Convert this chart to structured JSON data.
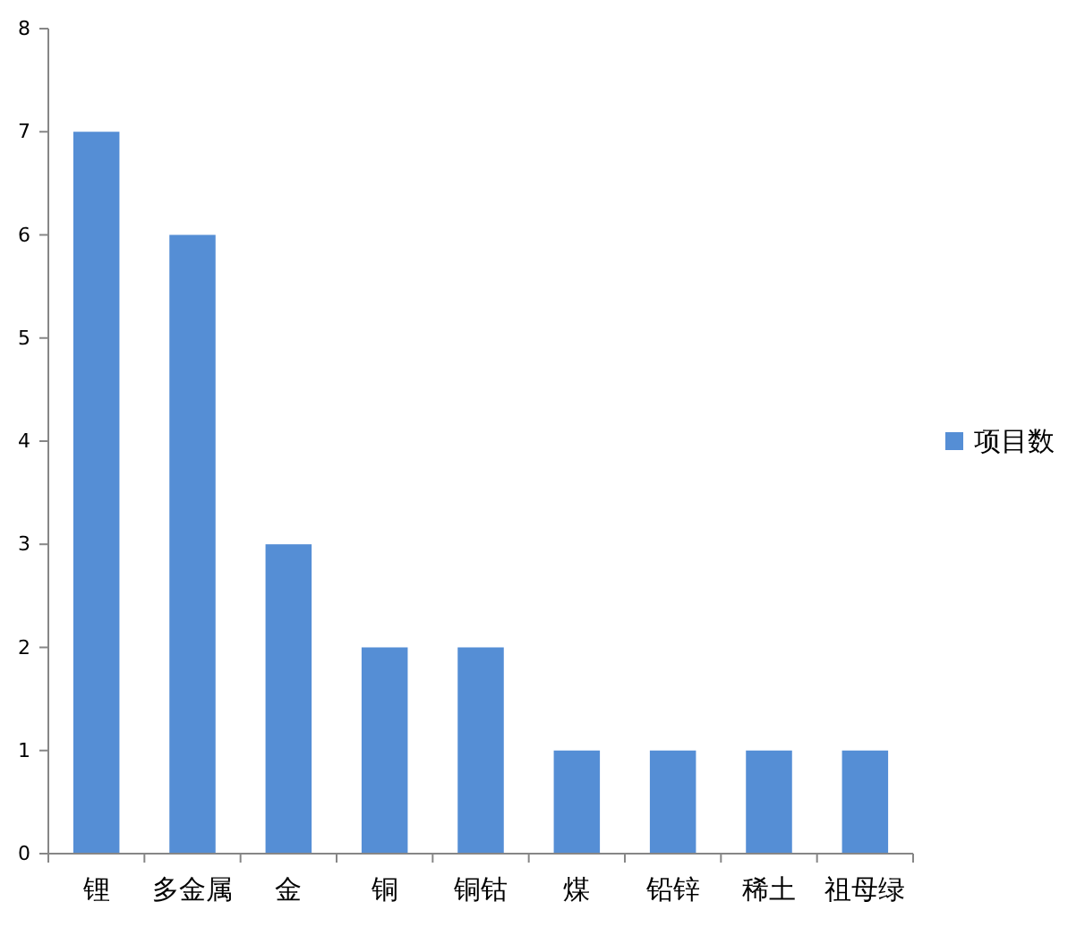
{
  "chart_data": {
    "type": "bar",
    "categories": [
      "锂",
      "多金属",
      "金",
      "铜",
      "铜钴",
      "煤",
      "铅锌",
      "稀土",
      "祖母绿"
    ],
    "series": [
      {
        "name": "项目数",
        "color": "#558ed5",
        "values": [
          7,
          6,
          3,
          2,
          2,
          1,
          1,
          1,
          1
        ]
      }
    ],
    "ylim": [
      0,
      8
    ],
    "yticks": [
      0,
      1,
      2,
      3,
      4,
      5,
      6,
      7,
      8
    ],
    "grid": false,
    "legend": "right"
  }
}
